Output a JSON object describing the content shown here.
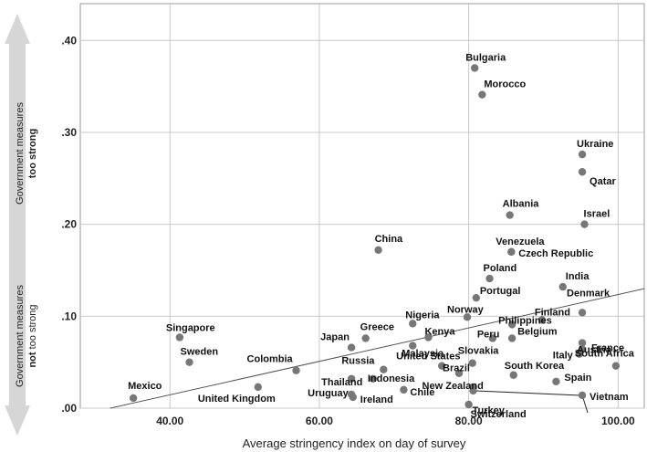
{
  "chart_data": {
    "type": "scatter",
    "xlabel": "Average stringency index on day of survey",
    "ylabel_top": {
      "line1": "Government measures",
      "line2": "too strong"
    },
    "ylabel_bottom": {
      "line1": "Government measures",
      "line2_bold": "not",
      "line2_rest": " too strong"
    },
    "xlim": [
      28,
      103.5
    ],
    "ylim": [
      0,
      0.44
    ],
    "x_ticks": [
      40,
      60,
      80,
      100
    ],
    "x_tick_labels": [
      "40.00",
      "60.00",
      "80.00",
      "100.00"
    ],
    "y_ticks": [
      0,
      0.1,
      0.2,
      0.3,
      0.4
    ],
    "y_tick_labels": [
      ".00",
      ".10",
      ".20",
      ".30",
      ".40"
    ],
    "grid": true,
    "colors": {
      "point": "#777777",
      "grid": "#c8c8c8",
      "fit_line": "#555555",
      "arrow": "#d6d6d6"
    },
    "fit_line": {
      "x": [
        32,
        103.5
      ],
      "y": [
        0,
        0.13
      ]
    },
    "points": [
      {
        "label": "Bulgaria",
        "x": 80.8,
        "y": 0.37
      },
      {
        "label": "Morocco",
        "x": 81.8,
        "y": 0.341
      },
      {
        "label": "Ukraine",
        "x": 95.2,
        "y": 0.276
      },
      {
        "label": "Qatar",
        "x": 95.2,
        "y": 0.257
      },
      {
        "label": "Albania",
        "x": 85.5,
        "y": 0.21
      },
      {
        "label": "Israel",
        "x": 95.5,
        "y": 0.2
      },
      {
        "label": "China",
        "x": 67.9,
        "y": 0.172
      },
      {
        "label": "Venezuela",
        "x": 85.7,
        "y": 0.17
      },
      {
        "label": "Czech Republic",
        "x": 85.7,
        "y": 0.17
      },
      {
        "label": "Poland",
        "x": 82.8,
        "y": 0.141
      },
      {
        "label": "India",
        "x": 92.6,
        "y": 0.132
      },
      {
        "label": "Portugal",
        "x": 81.0,
        "y": 0.12
      },
      {
        "label": "Denmark",
        "x": 95.2,
        "y": 0.104
      },
      {
        "label": "Finland",
        "x": 89.8,
        "y": 0.096
      },
      {
        "label": "Norway",
        "x": 79.8,
        "y": 0.099
      },
      {
        "label": "Philippines",
        "x": 85.8,
        "y": 0.091
      },
      {
        "label": "Nigeria",
        "x": 72.5,
        "y": 0.092
      },
      {
        "label": "Kenya",
        "x": 74.6,
        "y": 0.077
      },
      {
        "label": "Peru",
        "x": 83.2,
        "y": 0.076
      },
      {
        "label": "Belgium",
        "x": 85.8,
        "y": 0.076
      },
      {
        "label": "Austria",
        "x": 95.2,
        "y": 0.071
      },
      {
        "label": "France",
        "x": 95.2,
        "y": 0.064
      },
      {
        "label": "Singapore",
        "x": 41.3,
        "y": 0.077
      },
      {
        "label": "Greece",
        "x": 66.2,
        "y": 0.076
      },
      {
        "label": "Japan",
        "x": 64.3,
        "y": 0.066
      },
      {
        "label": "Malaysia",
        "x": 72.5,
        "y": 0.068
      },
      {
        "label": "Italy",
        "x": 94.8,
        "y": 0.059
      },
      {
        "label": "South Africa",
        "x": 99.7,
        "y": 0.046
      },
      {
        "label": "Slovakia",
        "x": 80.5,
        "y": 0.049
      },
      {
        "label": "Sweden",
        "x": 42.6,
        "y": 0.05
      },
      {
        "label": "Russia",
        "x": 68.6,
        "y": 0.042
      },
      {
        "label": "United States",
        "x": 76.4,
        "y": 0.046
      },
      {
        "label": "Colombia",
        "x": 56.9,
        "y": 0.041
      },
      {
        "label": "Brazil",
        "x": 78.7,
        "y": 0.038
      },
      {
        "label": "South Korea",
        "x": 86.0,
        "y": 0.036
      },
      {
        "label": "Spain",
        "x": 91.7,
        "y": 0.029
      },
      {
        "label": "Thailand",
        "x": 64.3,
        "y": 0.032
      },
      {
        "label": "Indonesia",
        "x": 67.2,
        "y": 0.032
      },
      {
        "label": "New Zealand",
        "x": 80.6,
        "y": 0.023
      },
      {
        "label": "Vietnam",
        "x": 95.2,
        "y": 0.014
      },
      {
        "label": "Switzerland",
        "x": 80.6,
        "y": 0.019
      },
      {
        "label": "Mexico",
        "x": 35.1,
        "y": 0.011
      },
      {
        "label": "United Kingdom",
        "x": 51.8,
        "y": 0.023
      },
      {
        "label": "Uruguay",
        "x": 64.3,
        "y": 0.015
      },
      {
        "label": "Ireland",
        "x": 64.5,
        "y": 0.012
      },
      {
        "label": "Chile",
        "x": 71.3,
        "y": 0.02
      },
      {
        "label": "Turkey",
        "x": 80.0,
        "y": 0.004
      }
    ]
  }
}
